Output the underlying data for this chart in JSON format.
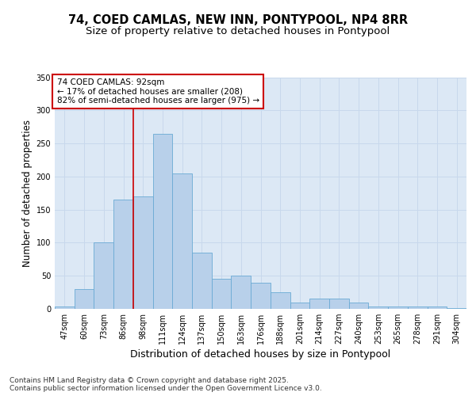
{
  "title_line1": "74, COED CAMLAS, NEW INN, PONTYPOOL, NP4 8RR",
  "title_line2": "Size of property relative to detached houses in Pontypool",
  "xlabel": "Distribution of detached houses by size in Pontypool",
  "ylabel": "Number of detached properties",
  "categories": [
    "47sqm",
    "60sqm",
    "73sqm",
    "86sqm",
    "98sqm",
    "111sqm",
    "124sqm",
    "137sqm",
    "150sqm",
    "163sqm",
    "176sqm",
    "188sqm",
    "201sqm",
    "214sqm",
    "227sqm",
    "240sqm",
    "253sqm",
    "265sqm",
    "278sqm",
    "291sqm",
    "304sqm"
  ],
  "bar_values": [
    3,
    30,
    100,
    165,
    170,
    265,
    205,
    85,
    45,
    50,
    40,
    25,
    10,
    15,
    15,
    10,
    4,
    3,
    3,
    3,
    1
  ],
  "bar_color": "#b8d0ea",
  "bar_edge_color": "#6aaad4",
  "highlight_line_color": "#cc0000",
  "highlight_line_index": 3.5,
  "annotation_text": "74 COED CAMLAS: 92sqm\n← 17% of detached houses are smaller (208)\n82% of semi-detached houses are larger (975) →",
  "annotation_box_color": "#ffffff",
  "annotation_box_edge_color": "#cc0000",
  "ylim": [
    0,
    350
  ],
  "yticks": [
    0,
    50,
    100,
    150,
    200,
    250,
    300,
    350
  ],
  "grid_color": "#c8d8ec",
  "background_color": "#dce8f5",
  "footer_text": "Contains HM Land Registry data © Crown copyright and database right 2025.\nContains public sector information licensed under the Open Government Licence v3.0.",
  "title_fontsize": 10.5,
  "subtitle_fontsize": 9.5,
  "axis_label_fontsize": 8.5,
  "tick_fontsize": 7,
  "annotation_fontsize": 7.5,
  "footer_fontsize": 6.5
}
